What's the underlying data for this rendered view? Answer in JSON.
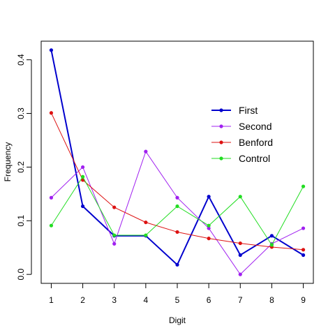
{
  "chart_data": {
    "type": "line",
    "title": "",
    "xlabel": "Digit",
    "ylabel": "Frequency",
    "x": [
      1,
      2,
      3,
      4,
      5,
      6,
      7,
      8,
      9
    ],
    "x_tick_labels": [
      "1",
      "2",
      "3",
      "4",
      "5",
      "6",
      "7",
      "8",
      "9"
    ],
    "y_ticks": [
      0.0,
      0.1,
      0.2,
      0.3,
      0.4
    ],
    "y_tick_labels": [
      "0.0",
      "0.1",
      "0.2",
      "0.3",
      "0.4"
    ],
    "xlim": [
      0.68,
      9.32
    ],
    "ylim": [
      -0.0167,
      0.4347
    ],
    "grid": false,
    "legend_position": "right",
    "series": [
      {
        "name": "First",
        "color": "#0000cd",
        "line_width": "thick",
        "values": [
          0.418,
          0.127,
          0.072,
          0.072,
          0.018,
          0.145,
          0.036,
          0.072,
          0.036
        ]
      },
      {
        "name": "Second",
        "color": "#a020f0",
        "line_width": "normal",
        "values": [
          0.143,
          0.2,
          0.057,
          0.229,
          0.143,
          0.086,
          0.0,
          0.057,
          0.086
        ]
      },
      {
        "name": "Benford",
        "color": "#dd1111",
        "line_width": "normal",
        "values": [
          0.301,
          0.176,
          0.125,
          0.097,
          0.079,
          0.067,
          0.058,
          0.051,
          0.046
        ]
      },
      {
        "name": "Control",
        "color": "#22dd22",
        "line_width": "normal",
        "values": [
          0.091,
          0.182,
          0.073,
          0.073,
          0.127,
          0.091,
          0.145,
          0.055,
          0.164
        ]
      }
    ]
  }
}
